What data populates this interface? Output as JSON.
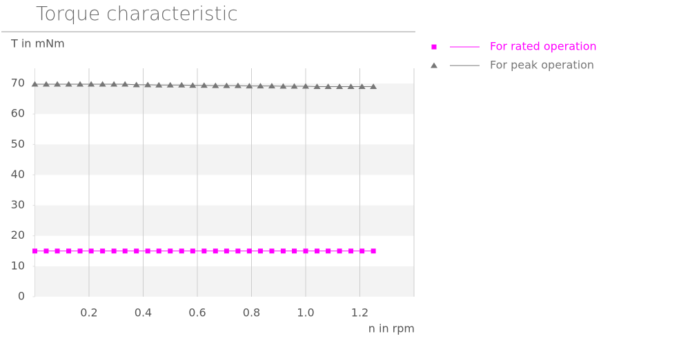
{
  "chart_data": {
    "type": "line",
    "title": "Torque characteristic",
    "y_label": "T in mNm",
    "x_label": "n in rpm",
    "x": [
      0,
      0.042,
      0.083,
      0.125,
      0.167,
      0.208,
      0.25,
      0.292,
      0.333,
      0.375,
      0.417,
      0.458,
      0.5,
      0.542,
      0.583,
      0.625,
      0.667,
      0.708,
      0.75,
      0.792,
      0.833,
      0.875,
      0.917,
      0.958,
      1.0,
      1.042,
      1.083,
      1.125,
      1.167,
      1.208,
      1.25
    ],
    "series": [
      {
        "name": "For rated operation",
        "color": "#ff00ff",
        "marker": "square",
        "values": [
          15,
          15,
          15,
          15,
          15,
          15,
          15,
          15,
          15,
          15,
          15,
          15,
          15,
          15,
          15,
          15,
          15,
          15,
          15,
          15,
          15,
          15,
          15,
          15,
          15,
          15,
          15,
          15,
          15,
          15,
          15
        ]
      },
      {
        "name": "For peak operation",
        "color": "#777777",
        "marker": "triangle",
        "values": [
          69.8,
          69.8,
          69.8,
          69.8,
          69.8,
          69.8,
          69.8,
          69.8,
          69.8,
          69.6,
          69.6,
          69.5,
          69.5,
          69.5,
          69.4,
          69.4,
          69.3,
          69.3,
          69.3,
          69.2,
          69.2,
          69.2,
          69.1,
          69.1,
          69.1,
          69.0,
          69.0,
          69.0,
          69.0,
          69.0,
          69.0
        ]
      }
    ],
    "xlim": [
      0,
      1.4
    ],
    "xticks": [
      0.2,
      0.4,
      0.6,
      0.8,
      {
        "value": 1,
        "label": "1.0"
      },
      1.2
    ],
    "ylim": [
      0,
      75
    ],
    "yticks": [
      0,
      10,
      20,
      30,
      40,
      50,
      60,
      70
    ],
    "grid": true
  }
}
